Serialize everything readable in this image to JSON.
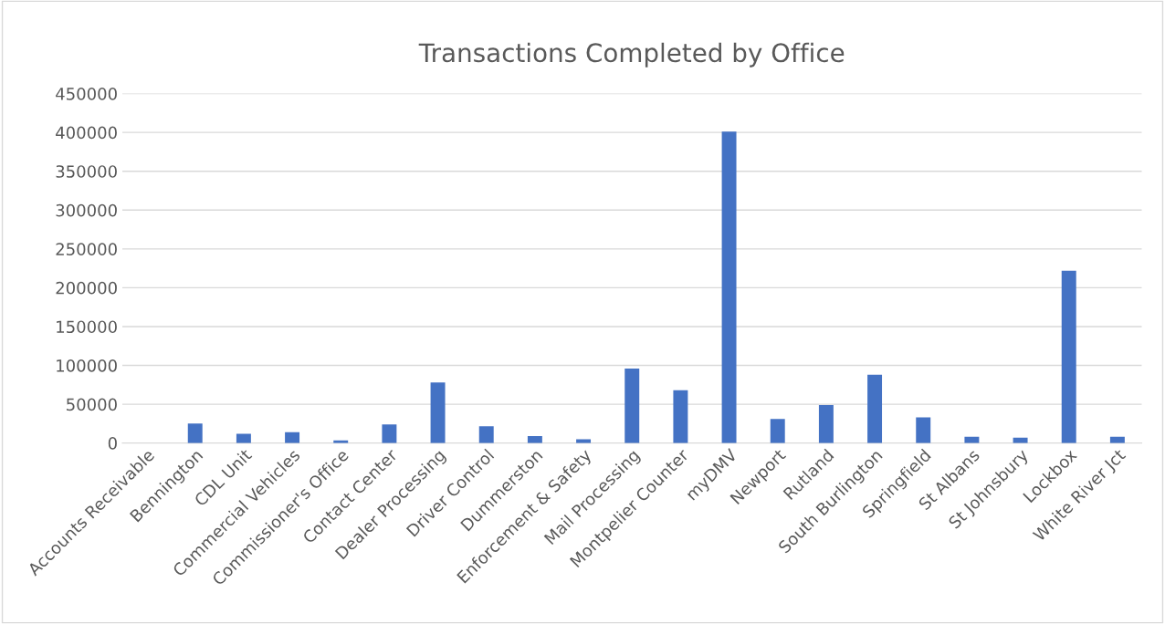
{
  "chart_data": {
    "type": "bar",
    "title": "Transactions Completed by Office",
    "categories": [
      "Accounts Receivable",
      "Bennington",
      "CDL Unit",
      "Commercial Vehicles",
      "Commissioner's Office",
      "Contact Center",
      "Dealer Processing",
      "Driver Control",
      "Dummerston",
      "Enforcement & Safety",
      "Mail Processing",
      "Montpelier Counter",
      "myDMV",
      "Newport",
      "Rutland",
      "South Burlington",
      "Springfield",
      "St Albans",
      "St Johnsbury",
      "Lockbox",
      "White River Jct"
    ],
    "values": [
      0,
      25000,
      12000,
      14000,
      3500,
      24000,
      78000,
      21500,
      9000,
      5000,
      96000,
      68000,
      401000,
      31000,
      49000,
      88000,
      33000,
      8000,
      7000,
      222000,
      8000
    ],
    "color": "#4472c4",
    "ylim": [
      0,
      450000
    ],
    "yticks": [
      0,
      50000,
      100000,
      150000,
      200000,
      250000,
      300000,
      350000,
      400000,
      450000
    ],
    "grid": "y"
  }
}
